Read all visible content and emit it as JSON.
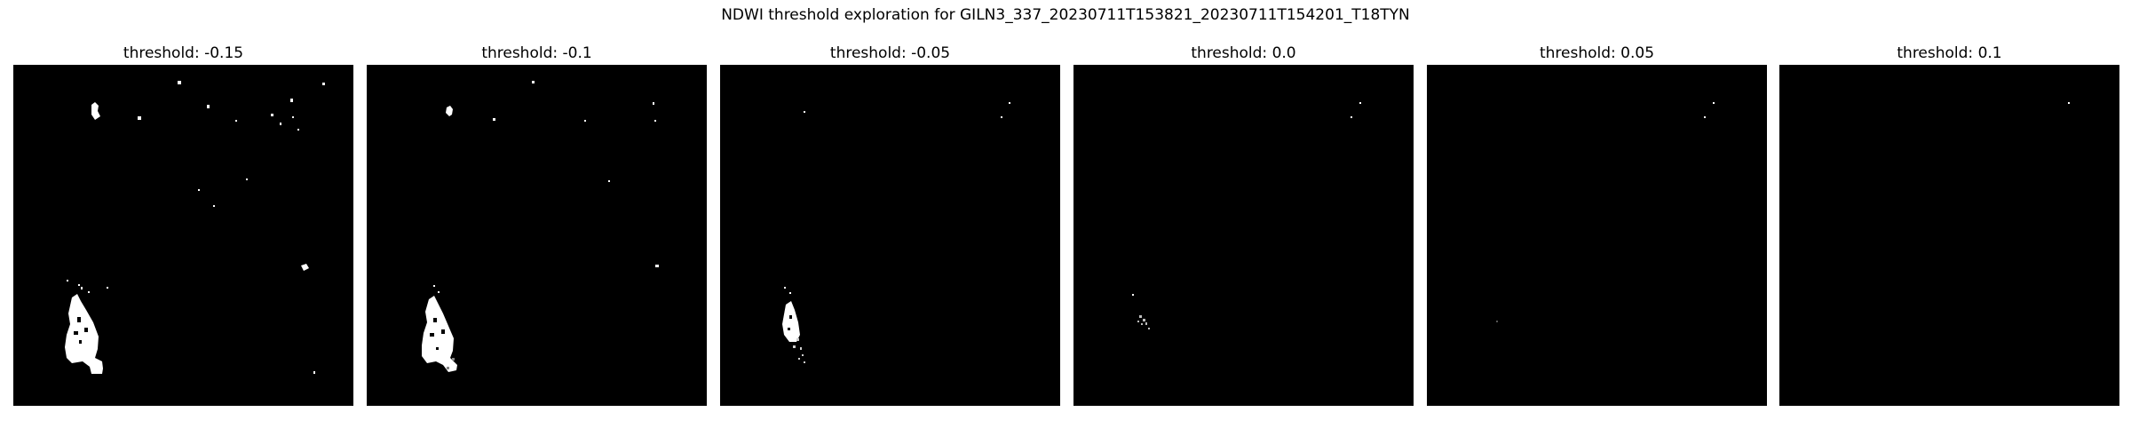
{
  "figure": {
    "suptitle": "NDWI threshold exploration for GILN3_337_20230711T153821_20230711T154201_T18TYN"
  },
  "panels": [
    {
      "title": "threshold: -0.15",
      "colors": {
        "background": "#000000",
        "water": "#ffffff"
      }
    },
    {
      "title": "threshold: -0.1"
    },
    {
      "title": "threshold: -0.05"
    },
    {
      "title": "threshold: 0.0"
    },
    {
      "title": "threshold: 0.05"
    },
    {
      "title": "threshold: 0.1"
    }
  ]
}
